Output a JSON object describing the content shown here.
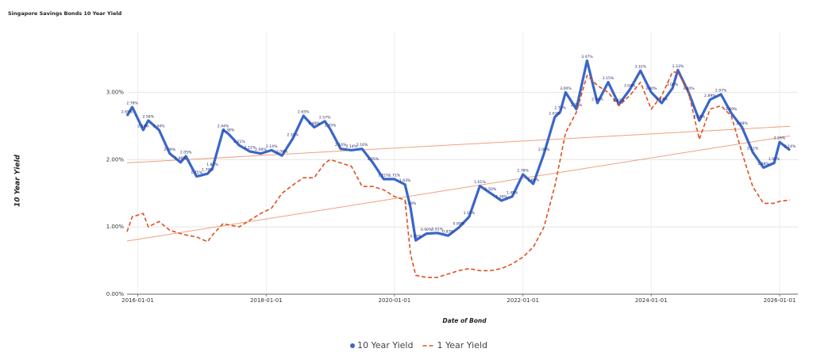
{
  "chart_data": {
    "type": "line",
    "title": "Singapore Savings Bonds 10 Year Yield",
    "x_label": "Date of Bond",
    "y_label": "10 Year Yield",
    "x": [
      "2015-11-01",
      "2015-12-01",
      "2016-02-01",
      "2016-03-01",
      "2016-05-01",
      "2016-07-01",
      "2016-09-01",
      "2016-10-01",
      "2016-12-01",
      "2017-02-01",
      "2017-03-01",
      "2017-05-01",
      "2017-06-01",
      "2017-08-01",
      "2017-10-01",
      "2017-12-01",
      "2018-02-01",
      "2018-04-01",
      "2018-06-01",
      "2018-08-01",
      "2018-10-01",
      "2018-12-01",
      "2019-01-01",
      "2019-03-01",
      "2019-05-01",
      "2019-07-01",
      "2019-09-01",
      "2019-11-01",
      "2020-01-01",
      "2020-03-01",
      "2020-04-01",
      "2020-05-01",
      "2020-07-01",
      "2020-09-01",
      "2020-11-01",
      "2021-01-01",
      "2021-03-01",
      "2021-05-01",
      "2021-07-01",
      "2021-09-01",
      "2021-11-01",
      "2022-01-01",
      "2022-03-01",
      "2022-05-01",
      "2022-07-01",
      "2022-08-01",
      "2022-09-01",
      "2022-11-01",
      "2023-01-01",
      "2023-03-01",
      "2023-05-01",
      "2023-07-01",
      "2023-09-01",
      "2023-11-01",
      "2024-01-01",
      "2024-03-01",
      "2024-05-01",
      "2024-06-01",
      "2024-08-01",
      "2024-10-01",
      "2024-12-01",
      "2025-02-01",
      "2025-04-01",
      "2025-06-01",
      "2025-08-01",
      "2025-10-01",
      "2025-12-01",
      "2026-01-01",
      "2026-03-01"
    ],
    "series": [
      {
        "name": "10 Year Yield",
        "color": "#3a66c8",
        "dash": false,
        "values": [
          2.65,
          2.78,
          2.44,
          2.58,
          2.44,
          2.09,
          1.96,
          2.05,
          1.75,
          1.79,
          1.87,
          2.44,
          2.38,
          2.21,
          2.12,
          2.09,
          2.14,
          2.06,
          2.31,
          2.65,
          2.48,
          2.57,
          2.45,
          2.16,
          2.14,
          2.16,
          1.95,
          1.71,
          1.71,
          1.63,
          1.29,
          0.8,
          0.9,
          0.91,
          0.87,
          0.99,
          1.15,
          1.61,
          1.5,
          1.39,
          1.45,
          1.78,
          1.64,
          2.09,
          2.63,
          2.71,
          3.0,
          2.75,
          3.47,
          2.84,
          3.15,
          2.82,
          3.04,
          3.32,
          3.0,
          2.84,
          3.06,
          3.33,
          3.0,
          2.58,
          2.89,
          2.97,
          2.69,
          2.48,
          2.11,
          1.88,
          1.95,
          2.26,
          2.14
        ],
        "value_labels": [
          "2.65%",
          "2.78%",
          "2.44%",
          "2.58%",
          "2.44%",
          "2.09%",
          "1.96%",
          "2.05%",
          "1.75%",
          "1.79%",
          "1.87%",
          "2.44%",
          "2.38%",
          "2.21%",
          "2.12%",
          "2.09%",
          "2.14%",
          "2.06%",
          "2.31%",
          "2.65%",
          "2.48%",
          "2.57%",
          "2.45%",
          "2.16%",
          "2.14%",
          "2.16%",
          "1.95%",
          "1.71%",
          "1.71%",
          "1.63%",
          "1.29%",
          "0.80%",
          "0.90%",
          "0.91%",
          "0.87%",
          "0.99%",
          "1.15%",
          "1.61%",
          "1.50%",
          "1.39%",
          "1.45%",
          "1.78%",
          "1.64%",
          "2.09%",
          "2.63%",
          "2.71%",
          "3.00%",
          "2.75%",
          "3.47%",
          "2.84%",
          "3.15%",
          "2.82%",
          "3.04%",
          "3.32%",
          "3.00%",
          "2.84%",
          "3.06%",
          "3.33%",
          "3.00%",
          "2.58%",
          "2.89%",
          "2.97%",
          "2.69%",
          "2.48%",
          "2.11%",
          "1.88%",
          "1.95%",
          "2.26%",
          "2.14%"
        ]
      },
      {
        "name": "1 Year Yield",
        "color": "#e0501e",
        "dash": true,
        "values": [
          0.93,
          1.15,
          1.2,
          1.0,
          1.08,
          0.95,
          0.9,
          0.88,
          0.85,
          0.78,
          0.88,
          1.05,
          1.03,
          1.0,
          1.1,
          1.2,
          1.28,
          1.5,
          1.62,
          1.73,
          1.73,
          1.95,
          2.0,
          1.95,
          1.9,
          1.6,
          1.6,
          1.55,
          1.45,
          1.4,
          0.6,
          0.28,
          0.25,
          0.25,
          0.3,
          0.35,
          0.38,
          0.35,
          0.35,
          0.38,
          0.45,
          0.55,
          0.7,
          1.0,
          1.6,
          2.0,
          2.4,
          2.7,
          3.25,
          3.1,
          3.0,
          2.8,
          2.95,
          3.15,
          2.75,
          2.95,
          3.3,
          3.3,
          3.0,
          2.3,
          2.75,
          2.8,
          2.65,
          2.1,
          1.6,
          1.35,
          1.35,
          1.38,
          1.4
        ]
      }
    ],
    "xlim": [
      "2015-11-01",
      "2026-04-15"
    ],
    "xticks": [
      "2016-01-01",
      "2018-01-01",
      "2020-01-01",
      "2022-01-01",
      "2024-01-01",
      "2026-01-01"
    ],
    "ylim": [
      0,
      3.9
    ],
    "yticks": [
      {
        "value": 0,
        "label": "0.00%"
      },
      {
        "value": 1,
        "label": "1.00%"
      },
      {
        "value": 2,
        "label": "2.00%"
      },
      {
        "value": 3,
        "label": "3.00%"
      }
    ],
    "trendlines": true,
    "grid": true,
    "legend": "bottom"
  }
}
